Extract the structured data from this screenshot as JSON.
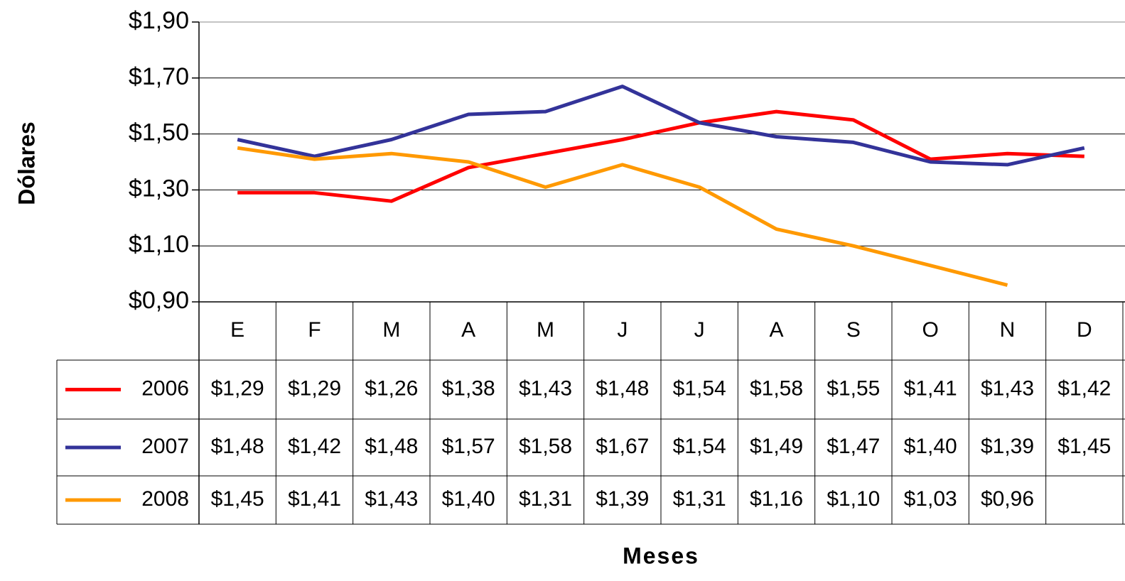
{
  "chart_data": {
    "type": "line",
    "x_label": "Meses",
    "y_label": "Dólares",
    "categories": [
      "E",
      "F",
      "M",
      "A",
      "M",
      "J",
      "J",
      "A",
      "S",
      "O",
      "N",
      "D"
    ],
    "series": [
      {
        "name": "2006",
        "color": "#ff0000",
        "values": [
          1.29,
          1.29,
          1.26,
          1.38,
          1.43,
          1.48,
          1.54,
          1.58,
          1.55,
          1.41,
          1.43,
          1.42
        ],
        "value_labels": [
          "$1,29",
          "$1,29",
          "$1,26",
          "$1,38",
          "$1,43",
          "$1,48",
          "$1,54",
          "$1,58",
          "$1,55",
          "$1,41",
          "$1,43",
          "$1,42"
        ]
      },
      {
        "name": "2007",
        "color": "#333399",
        "values": [
          1.48,
          1.42,
          1.48,
          1.57,
          1.58,
          1.67,
          1.54,
          1.49,
          1.47,
          1.4,
          1.39,
          1.45
        ],
        "value_labels": [
          "$1,48",
          "$1,42",
          "$1,48",
          "$1,57",
          "$1,58",
          "$1,67",
          "$1,54",
          "$1,49",
          "$1,47",
          "$1,40",
          "$1,39",
          "$1,45"
        ]
      },
      {
        "name": "2008",
        "color": "#ff9900",
        "values": [
          1.45,
          1.41,
          1.43,
          1.4,
          1.31,
          1.39,
          1.31,
          1.16,
          1.1,
          1.03,
          0.96,
          null
        ],
        "value_labels": [
          "$1,45",
          "$1,41",
          "$1,43",
          "$1,40",
          "$1,31",
          "$1,39",
          "$1,31",
          "$1,16",
          "$1,10",
          "$1,03",
          "$0,96",
          null
        ]
      }
    ],
    "ylim": [
      0.9,
      1.9
    ],
    "yticks": [
      {
        "value": 0.9,
        "label": "$0,90"
      },
      {
        "value": 1.1,
        "label": "$1,10"
      },
      {
        "value": 1.3,
        "label": "$1,30"
      },
      {
        "value": 1.5,
        "label": "$1,50"
      },
      {
        "value": 1.7,
        "label": "$1,70"
      },
      {
        "value": 1.9,
        "label": "$1,90"
      }
    ],
    "grid": true
  }
}
